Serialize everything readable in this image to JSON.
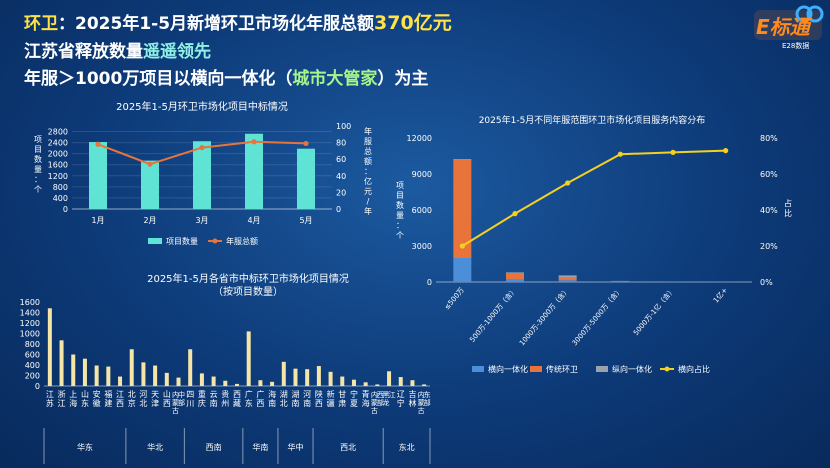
{
  "headline": {
    "line1_prefix": "环卫",
    "line1_text": "：2025年1-5月新增环卫市场化年服总额",
    "line1_value": "370亿元",
    "line2_text": "江苏省释放数量",
    "line2_emph": "遥遥领先",
    "line3_pre": "年服＞1000万项目以横向一体化（",
    "line3_emph": "城市大管家",
    "line3_post": "）为主"
  },
  "logo": {
    "text": "E标通",
    "sub": "E28数据"
  },
  "colors": {
    "cyan": "#5fe3d4",
    "orange": "#e8743b",
    "blue": "#4d8ed8",
    "gray": "#9aa3ad",
    "yellow": "#f5d020",
    "bar_yellow": "#f5e6a8"
  },
  "chart_data": [
    {
      "type": "bar+line",
      "title": "2025年1-5月环卫市场化项目中标情况",
      "categories": [
        "1月",
        "2月",
        "3月",
        "4月",
        "5月"
      ],
      "series": [
        {
          "name": "项目数量",
          "type": "bar",
          "axis": "left",
          "values": [
            2420,
            1750,
            2450,
            2720,
            2180
          ]
        },
        {
          "name": "年服总额",
          "type": "line",
          "axis": "right",
          "values": [
            78,
            54,
            74,
            81,
            79
          ]
        }
      ],
      "ylabel": "项目数量：个",
      "ylabel_right": "年服总额：亿元/年",
      "ylim": [
        0,
        3000
      ],
      "yticks": [
        "0",
        "400",
        "800",
        "1200",
        "1600",
        "2000",
        "2400",
        "2800"
      ],
      "ylim_right": [
        0,
        100
      ],
      "yticks_right": [
        "0",
        "20",
        "40",
        "60",
        "80",
        "100"
      ],
      "legend_position": "bottom"
    },
    {
      "type": "bar",
      "title": "2025年1-5月各省市中标环卫市场化项目情况",
      "subtitle": "（按项目数量）",
      "categories": [
        "江苏",
        "浙江",
        "上海",
        "山东",
        "安徽",
        "福建",
        "江西",
        "北京",
        "河北",
        "天津",
        "山西",
        "内蒙古中部",
        "四川",
        "重庆",
        "云南",
        "贵州",
        "西藏",
        "广东",
        "广西",
        "海南",
        "湖北",
        "湖南",
        "河南",
        "陕西",
        "新疆",
        "甘肃",
        "宁夏",
        "青海",
        "内蒙古西部",
        "黑龙江",
        "辽宁",
        "吉林",
        "内蒙古东部"
      ],
      "values": [
        1480,
        870,
        600,
        520,
        390,
        370,
        180,
        700,
        450,
        390,
        250,
        160,
        700,
        240,
        180,
        100,
        40,
        1040,
        110,
        80,
        460,
        330,
        320,
        380,
        270,
        180,
        120,
        70,
        30,
        280,
        170,
        110,
        30
      ],
      "ylim": [
        0,
        1600
      ],
      "yticks": [
        "0",
        "200",
        "400",
        "600",
        "800",
        "1000",
        "1200",
        "1400",
        "1600"
      ],
      "groups": [
        {
          "name": "华东",
          "count": 7
        },
        {
          "name": "华北",
          "count": 5
        },
        {
          "name": "西南",
          "count": 5
        },
        {
          "name": "华南",
          "count": 3
        },
        {
          "name": "华中",
          "count": 3
        },
        {
          "name": "西北",
          "count": 6
        },
        {
          "name": "东北",
          "count": 4
        }
      ]
    },
    {
      "type": "stacked-bar+line",
      "title": "2025年1-5月不同年服范围环卫市场化项目服务内容分布",
      "categories": [
        "≤500万",
        "500万-1000万（含）",
        "1000万-3000万（含）",
        "3000万-5000万（含）",
        "5000万-1亿（含）",
        "1亿+"
      ],
      "series": [
        {
          "name": "横向一体化",
          "type": "bar",
          "stack": "a",
          "values": [
            2000,
            250,
            150,
            40,
            20,
            10
          ]
        },
        {
          "name": "传统环卫",
          "type": "bar",
          "stack": "a",
          "values": [
            8200,
            500,
            200,
            30,
            10,
            5
          ]
        },
        {
          "name": "纵向一体化",
          "type": "bar",
          "stack": "a",
          "values": [
            50,
            50,
            200,
            20,
            10,
            5
          ]
        },
        {
          "name": "横向占比",
          "type": "line",
          "axis": "right",
          "values": [
            20,
            38,
            55,
            71,
            72,
            73
          ]
        }
      ],
      "ylabel": "项目数量：个",
      "ylabel_right": "占比",
      "ylim": [
        0,
        12000
      ],
      "yticks": [
        "0",
        "3000",
        "6000",
        "9000",
        "12000"
      ],
      "ylim_right": [
        0,
        80
      ],
      "yticks_right": [
        "0%",
        "20%",
        "40%",
        "60%",
        "80%"
      ],
      "legend_position": "bottom"
    }
  ]
}
